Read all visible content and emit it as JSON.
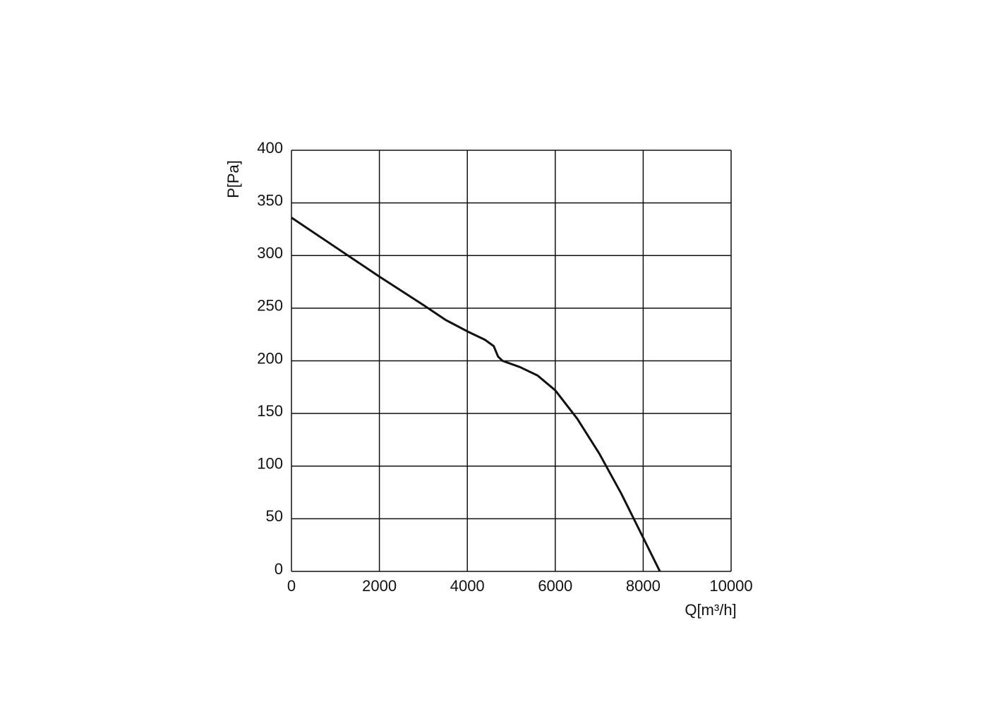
{
  "chart_data": {
    "type": "line",
    "x_label": "Q[m³/h]",
    "y_label": "P[Pa]",
    "x": [
      0,
      1000,
      2000,
      3000,
      3500,
      4000,
      4400,
      4600,
      4700,
      4800,
      5200,
      5600,
      6000,
      6500,
      7000,
      7500,
      8000,
      8380
    ],
    "series": [
      {
        "color": "#111111",
        "values": [
          336,
          308,
          280,
          253,
          239,
          228,
          220,
          214,
          204,
          200,
          194,
          186,
          172,
          145,
          112,
          74,
          32,
          0
        ]
      }
    ],
    "xlim": [
      0,
      10000
    ],
    "xticks": [
      0,
      2000,
      4000,
      6000,
      8000,
      10000
    ],
    "ylim": [
      0,
      400
    ],
    "yticks": [
      0,
      50,
      100,
      150,
      200,
      250,
      300,
      350,
      400
    ],
    "grid": true
  }
}
